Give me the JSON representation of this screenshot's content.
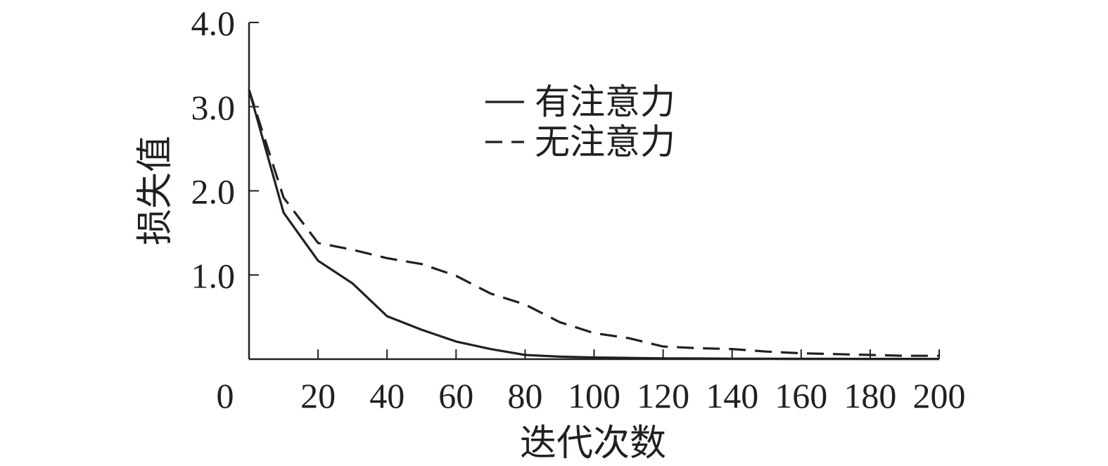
{
  "chart_data": {
    "type": "line",
    "title": "",
    "xlabel": "迭代次数",
    "ylabel": "损失值",
    "xlim": [
      0,
      200
    ],
    "ylim": [
      0,
      4
    ],
    "x_ticks": [
      0,
      20,
      40,
      60,
      80,
      100,
      120,
      140,
      160,
      180,
      200
    ],
    "x_tick_labels": [
      "0",
      "20",
      "40",
      "60",
      "80",
      "100",
      "120",
      "140",
      "160",
      "180",
      "200"
    ],
    "y_ticks": [
      1,
      2,
      3,
      4
    ],
    "y_tick_labels": [
      "1.0",
      "2.0",
      "3.0",
      "4.0"
    ],
    "grid": false,
    "legend_position": "upper-center",
    "series": [
      {
        "name": "有注意力",
        "style": "solid",
        "color": "#231f20",
        "x": [
          0,
          10,
          20,
          30,
          40,
          50,
          60,
          70,
          80,
          90,
          100,
          110,
          120,
          130,
          140,
          150,
          160,
          170,
          180,
          190,
          200
        ],
        "y": [
          3.2,
          1.74,
          1.17,
          0.9,
          0.51,
          0.35,
          0.21,
          0.12,
          0.05,
          0.03,
          0.02,
          0.015,
          0.01,
          0.008,
          0.006,
          0.005,
          0.004,
          0.004,
          0.003,
          0.003,
          0.003
        ]
      },
      {
        "name": "无注意力",
        "style": "dashed",
        "color": "#231f20",
        "x": [
          0,
          10,
          20,
          30,
          40,
          50,
          60,
          70,
          80,
          90,
          100,
          110,
          120,
          130,
          140,
          150,
          160,
          170,
          180,
          190,
          200
        ],
        "y": [
          3.2,
          1.92,
          1.38,
          1.3,
          1.2,
          1.13,
          0.99,
          0.78,
          0.65,
          0.44,
          0.31,
          0.25,
          0.15,
          0.13,
          0.12,
          0.09,
          0.07,
          0.06,
          0.05,
          0.04,
          0.04
        ]
      }
    ]
  }
}
